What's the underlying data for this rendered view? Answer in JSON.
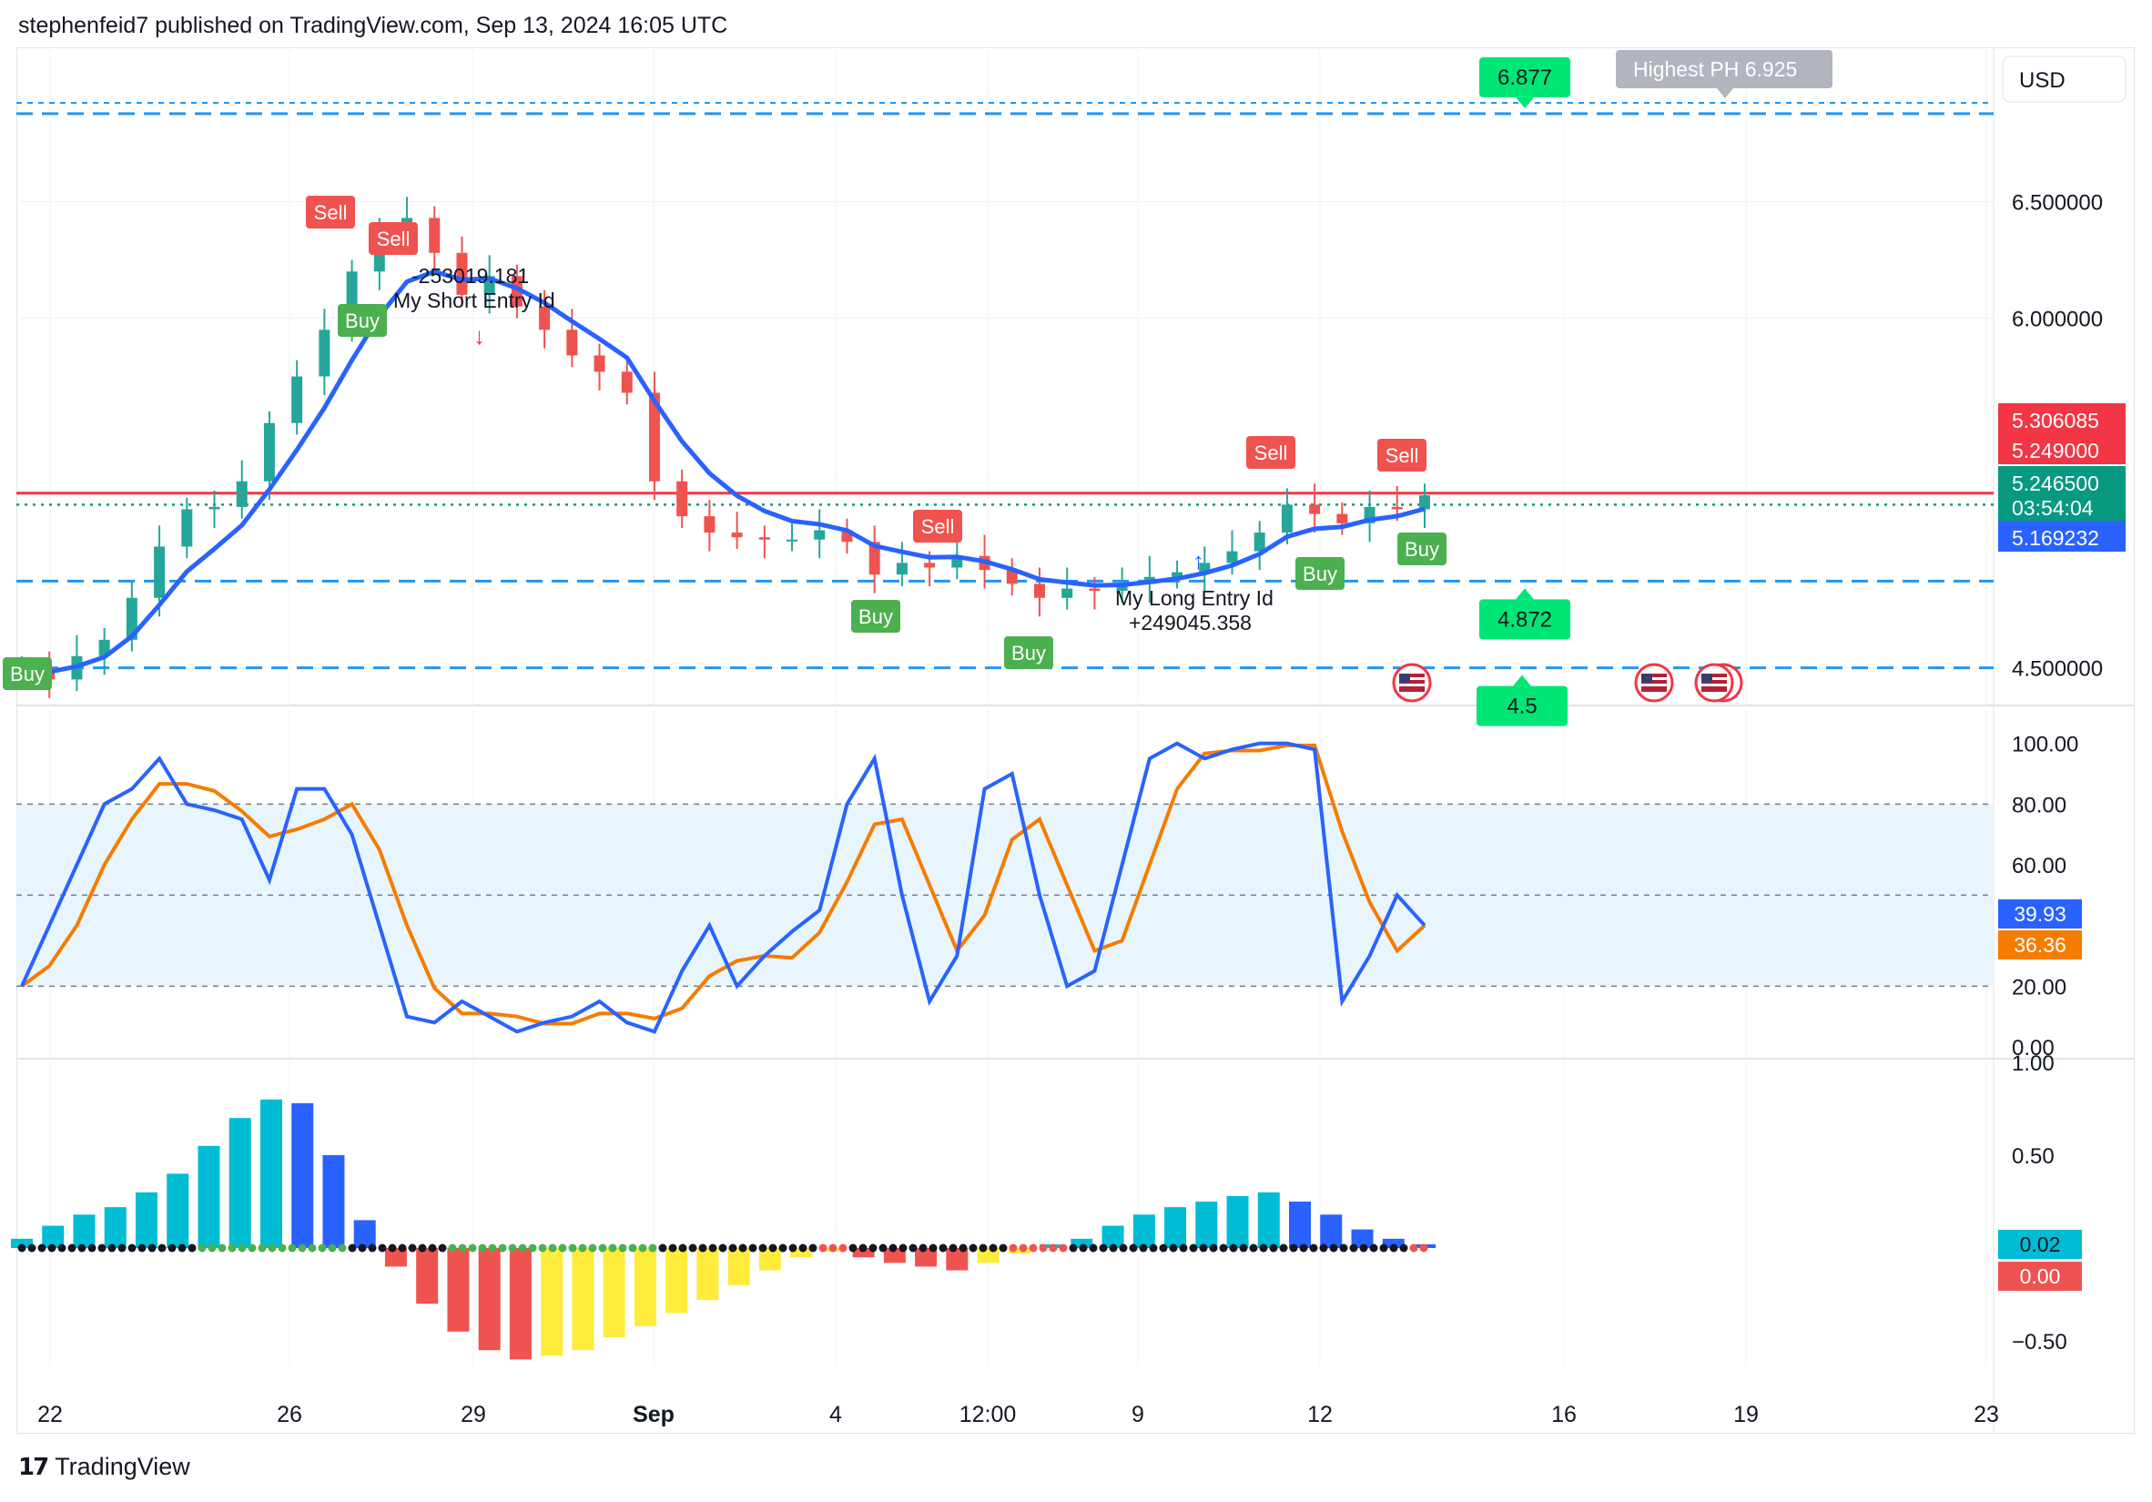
{
  "header": {
    "publisher": "stephenfeid7 published on TradingView.com, Sep 13, 2024 16:05 UTC"
  },
  "footer": {
    "brand": "TradingView",
    "brand_icon": "tradingview-logo-icon"
  },
  "chart_data": {
    "type": "candlestick",
    "currency": "USD",
    "colors": {
      "up": "#26a69a",
      "down": "#ef5350",
      "ema": "#2962ff",
      "stoch_k": "#2962ff",
      "stoch_d": "#f57c00",
      "price_line": "#f23645",
      "current_line": "#089981",
      "level_line": "#2196f3"
    },
    "x_ticks": [
      "22",
      "26",
      "29",
      "Sep",
      "4",
      "12:00",
      "9",
      "12",
      "16",
      "19",
      "23"
    ],
    "price_axis": {
      "ticks": [
        "6.500000",
        "6.000000",
        "4.500000"
      ],
      "ylim": [
        4.35,
        7.15
      ]
    },
    "price_labels": [
      {
        "value": "5.306085",
        "color": "#f23645"
      },
      {
        "value": "5.249000",
        "color": "#f23645"
      },
      {
        "value": "5.246500",
        "color": "#089981"
      },
      {
        "value": "03:54:04",
        "color": "#089981"
      },
      {
        "value": "5.169232",
        "color": "#2962ff"
      }
    ],
    "level_lines": [
      {
        "value": 6.877,
        "label": "6.877"
      },
      {
        "value": 4.872,
        "label": "4.872"
      },
      {
        "value": 4.5,
        "label": "4.5"
      }
    ],
    "highest_label": "Highest PH 6.925",
    "annotations": {
      "short_entry": {
        "amount": "-253019.181",
        "label": "My Short Entry Id"
      },
      "long_entry": {
        "amount": "+249045.358",
        "label": "My Long Entry Id"
      }
    },
    "signals": {
      "buy": "Buy",
      "sell": "Sell"
    },
    "closes": [
      4.5,
      4.45,
      4.55,
      4.62,
      4.8,
      5.02,
      5.18,
      5.19,
      5.3,
      5.55,
      5.75,
      5.95,
      6.2,
      6.36,
      6.43,
      6.28,
      6.1,
      6.18,
      6.05,
      5.95,
      5.84,
      5.77,
      5.68,
      5.3,
      5.15,
      5.08,
      5.06,
      5.05,
      5.05,
      5.09,
      5.04,
      4.9,
      4.95,
      4.93,
      4.98,
      4.92,
      4.86,
      4.8,
      4.84,
      4.83,
      4.86,
      4.89,
      4.91,
      4.95,
      5.0,
      5.08,
      5.2,
      5.16,
      5.12,
      5.19,
      5.18,
      5.24
    ],
    "stochastic": {
      "axis_ticks": [
        "100.00",
        "80.00",
        "60.00",
        "20.00",
        "0.00"
      ],
      "k_label": "39.93",
      "d_label": "36.36",
      "k": [
        20,
        40,
        60,
        80,
        85,
        95,
        80,
        78,
        75,
        55,
        85,
        85,
        70,
        40,
        10,
        8,
        15,
        10,
        5,
        8,
        10,
        15,
        8,
        5,
        25,
        40,
        20,
        30,
        38,
        45,
        80,
        95,
        50,
        15,
        30,
        85,
        90,
        50,
        20,
        25,
        60,
        95,
        100,
        95,
        98,
        100,
        100,
        98,
        15,
        30,
        50,
        40
      ]
    },
    "momentum": {
      "axis_ticks": [
        "1.00",
        "0.50",
        "-0.50"
      ],
      "value_label_1": "0.02",
      "value_label_2": "0.00",
      "values": [
        0.05,
        0.12,
        0.18,
        0.22,
        0.3,
        0.4,
        0.55,
        0.7,
        0.8,
        0.78,
        0.5,
        0.15,
        -0.1,
        -0.3,
        -0.45,
        -0.55,
        -0.6,
        -0.58,
        -0.55,
        -0.48,
        -0.42,
        -0.35,
        -0.28,
        -0.2,
        -0.12,
        -0.05,
        -0.02,
        -0.05,
        -0.08,
        -0.1,
        -0.12,
        -0.08,
        -0.03,
        0.02,
        0.05,
        0.12,
        0.18,
        0.22,
        0.25,
        0.28,
        0.3,
        0.25,
        0.18,
        0.1,
        0.05,
        0.02
      ]
    }
  }
}
